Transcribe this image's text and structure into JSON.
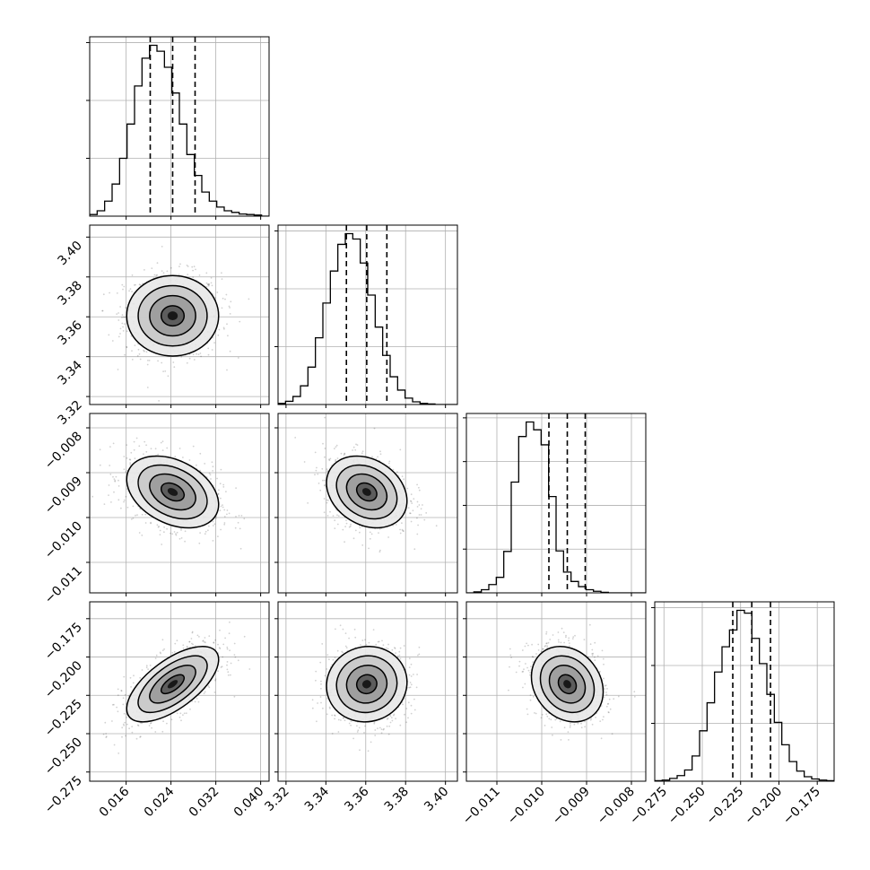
{
  "chart_data": {
    "type": "corner",
    "parameters": [
      {
        "range": [
          0.0095,
          0.0415
        ],
        "ticks": [
          "0.016",
          "0.024",
          "0.032",
          "0.040"
        ],
        "tick_values": [
          0.016,
          0.024,
          0.032,
          0.04
        ],
        "quantiles": [
          0.0203,
          0.0243,
          0.0283
        ],
        "hist_bins": [
          0.0095,
          0.0415,
          24
        ],
        "hist_counts": [
          3,
          10,
          28,
          60,
          108,
          172,
          243,
          295,
          319,
          308,
          278,
          230,
          172,
          115,
          76,
          45,
          28,
          17,
          10,
          7,
          4,
          3,
          2,
          0
        ],
        "y_ticks_count": 3
      },
      {
        "range": [
          3.316,
          3.406
        ],
        "ticks": [
          "3.32",
          "3.34",
          "3.36",
          "3.38",
          "3.40"
        ],
        "tick_values": [
          3.32,
          3.34,
          3.36,
          3.38,
          3.4
        ],
        "quantiles": [
          3.3503,
          3.3605,
          3.3706
        ],
        "hist_bins": [
          3.316,
          3.406,
          24
        ],
        "hist_counts": [
          2,
          6,
          15,
          35,
          70,
          125,
          190,
          250,
          300,
          320,
          310,
          265,
          205,
          145,
          92,
          52,
          27,
          12,
          5,
          2,
          1,
          0,
          0,
          0
        ],
        "y_ticks_count": 3
      },
      {
        "range": [
          -0.01168,
          -0.00768
        ],
        "ticks": [
          "−0.011",
          "−0.010",
          "−0.009",
          "−0.008"
        ],
        "tick_values": [
          -0.011,
          -0.01,
          -0.009,
          -0.008
        ],
        "quantiles": [
          -0.00984,
          -0.00943,
          -0.00903
        ],
        "hist_bins": [
          -0.01168,
          -0.00768,
          24
        ],
        "hist_counts": [
          0,
          2,
          6,
          16,
          30,
          80,
          214,
          302,
          330,
          315,
          286,
          186,
          81,
          40,
          22,
          12,
          6,
          3,
          1,
          0,
          0,
          0,
          0,
          0
        ],
        "y_ticks_count": 4
      },
      {
        "range": [
          -0.281,
          -0.164
        ],
        "ticks": [
          "−0.275",
          "−0.250",
          "−0.225",
          "−0.200",
          "−0.175"
        ],
        "tick_values": [
          -0.275,
          -0.25,
          -0.225,
          -0.2,
          -0.175
        ],
        "quantiles": [
          -0.2301,
          -0.2177,
          -0.2055
        ],
        "hist_bins": [
          -0.281,
          -0.164,
          24
        ],
        "hist_counts": [
          1,
          2,
          5,
          10,
          20,
          45,
          90,
          140,
          195,
          240,
          270,
          305,
          300,
          255,
          210,
          155,
          105,
          65,
          35,
          18,
          8,
          4,
          2,
          1
        ],
        "y_ticks_count": 3
      }
    ],
    "means": [
      0.0243,
      3.3605,
      -0.00943,
      -0.2177
    ],
    "sds": [
      0.0041,
      0.0101,
      0.0004,
      0.0123
    ],
    "correlations": [
      [
        1.0,
        0.0,
        -0.35,
        0.65
      ],
      [
        0.0,
        1.0,
        -0.25,
        0.05
      ],
      [
        -0.35,
        -0.25,
        1.0,
        -0.2
      ],
      [
        0.65,
        0.05,
        -0.2,
        1.0
      ]
    ],
    "contour_levels": "0.5, 1.0, 1.5, 2.0 sigma",
    "grid": true,
    "colors": {
      "line": "#000000",
      "grid": "#b0b0b0",
      "points": "#000000"
    }
  }
}
